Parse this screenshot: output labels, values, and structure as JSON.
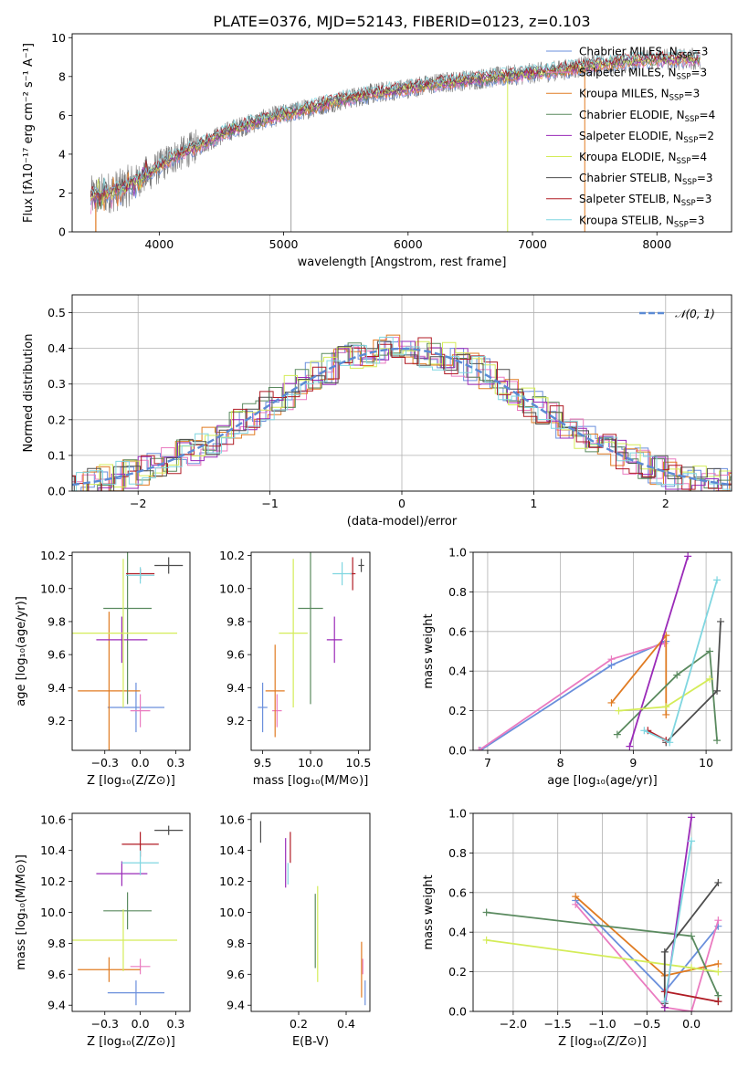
{
  "figure": {
    "title": "PLATE=0376, MJD=52143, FIBERID=0123, z=0.103"
  },
  "colors": {
    "chabrier_miles": "#6a8fdc",
    "salpeter_miles": "#ea7bc0",
    "kroupa_miles": "#e07b22",
    "chabrier_elodie": "#5a8a5f",
    "salpeter_elodie": "#9a2ab8",
    "kroupa_elodie": "#d4ec58",
    "chabrier_stelib": "#4d4d4d",
    "salpeter_stelib": "#b01b24",
    "kroupa_stelib": "#7fd6e0",
    "spectrum": "#777777"
  },
  "chart_data": [
    {
      "id": "spectrum",
      "type": "line",
      "xlabel": "wavelength [Angstrom, rest frame]",
      "ylabel": "Flux [fλ10⁻¹⁷ erg cm⁻² s⁻¹ A⁻¹]",
      "xlim": [
        3300,
        8600
      ],
      "ylim": [
        0,
        10.2
      ],
      "xticks": [
        4000,
        5000,
        6000,
        7000,
        8000
      ],
      "yticks": [
        0,
        2,
        4,
        6,
        8,
        10
      ],
      "legend": "upper right",
      "grid": false,
      "series": [
        {
          "key": "chabrier_miles",
          "name": "Chabrier MILES, N",
          "sub": "SSP",
          "suffix": "=3"
        },
        {
          "key": "salpeter_miles",
          "name": "Salpeter MILES, N",
          "sub": "SSP",
          "suffix": "=3"
        },
        {
          "key": "kroupa_miles",
          "name": "Kroupa MILES, N",
          "sub": "SSP",
          "suffix": "=3"
        },
        {
          "key": "chabrier_elodie",
          "name": "Chabrier ELODIE, N",
          "sub": "SSP",
          "suffix": "=4"
        },
        {
          "key": "salpeter_elodie",
          "name": "Salpeter ELODIE, N",
          "sub": "SSP",
          "suffix": "=2"
        },
        {
          "key": "kroupa_elodie",
          "name": "Kroupa ELODIE, N",
          "sub": "SSP",
          "suffix": "=4"
        },
        {
          "key": "chabrier_stelib",
          "name": "Chabrier STELIB, N",
          "sub": "SSP",
          "suffix": "=3"
        },
        {
          "key": "salpeter_stelib",
          "name": "Salpeter STELIB, N",
          "sub": "SSP",
          "suffix": "=3"
        },
        {
          "key": "kroupa_stelib",
          "name": "Kroupa STELIB, N",
          "sub": "SSP",
          "suffix": "=3"
        }
      ],
      "continuum_x": [
        3450,
        3700,
        3900,
        4100,
        4300,
        4600,
        4900,
        5100,
        5400,
        5700,
        6000,
        6300,
        6600,
        6900,
        7200,
        7500,
        7800,
        8100,
        8350
      ],
      "continuum_y": [
        1.8,
        2.2,
        2.9,
        3.8,
        4.4,
        5.3,
        5.9,
        6.2,
        6.7,
        7.1,
        7.4,
        7.7,
        7.9,
        8.1,
        8.3,
        8.6,
        8.8,
        8.9,
        8.9
      ]
    },
    {
      "id": "residuals",
      "type": "histogram",
      "xlabel": "(data-model)/error",
      "ylabel": "Normed distribution",
      "xlim": [
        -2.5,
        2.5
      ],
      "ylim": [
        0,
        0.55
      ],
      "xticks": [
        -2,
        -1,
        0,
        1,
        2
      ],
      "yticks": [
        0.0,
        0.1,
        0.2,
        0.3,
        0.4,
        0.5
      ],
      "legend": "upper right",
      "grid": true,
      "reference_label": "𝒩(0, 1)",
      "bins": {
        "start": -2.6,
        "width": 0.1,
        "count": 52
      }
    },
    {
      "id": "age_vs_Z",
      "type": "scatter",
      "xlabel": "Z [log₁₀(Z/Z⊙)]",
      "ylabel": "age  [log₁₀(age/yr)]",
      "xlim": [
        -0.48,
        0.35
      ],
      "ylim": [
        9.02,
        10.22
      ],
      "xticks": [
        -0.25,
        0.0,
        0.25
      ],
      "yticks": [
        9.2,
        9.4,
        9.6,
        9.8,
        10.0,
        10.2
      ],
      "grid": false,
      "points": [
        {
          "key": "chabrier_miles",
          "x": -0.03,
          "y": 9.28,
          "xerr": 0.2,
          "yerr": 0.15
        },
        {
          "key": "salpeter_miles",
          "x": 0.0,
          "y": 9.26,
          "xerr": 0.07,
          "yerr": 0.1
        },
        {
          "key": "kroupa_miles",
          "x": -0.22,
          "y": 9.38,
          "xerr": 0.22,
          "yerr": 0.48
        },
        {
          "key": "chabrier_elodie",
          "x": -0.09,
          "y": 9.88,
          "xerr": 0.17,
          "yerr": 0.58
        },
        {
          "key": "salpeter_elodie",
          "x": -0.13,
          "y": 9.69,
          "xerr": 0.18,
          "yerr": 0.14
        },
        {
          "key": "kroupa_elodie",
          "x": -0.12,
          "y": 9.73,
          "xerr": 0.38,
          "yerr": 0.45
        },
        {
          "key": "chabrier_stelib",
          "x": 0.2,
          "y": 10.14,
          "xerr": 0.1,
          "yerr": 0.05
        },
        {
          "key": "salpeter_stelib",
          "x": 0.0,
          "y": 10.09,
          "xerr": 0.1,
          "yerr": 0.03
        },
        {
          "key": "kroupa_stelib",
          "x": 0.0,
          "y": 10.08,
          "xerr": 0.1,
          "yerr": 0.05
        }
      ]
    },
    {
      "id": "age_vs_mass",
      "type": "scatter",
      "xlabel": "mass [log₁₀(M/M⊙)]",
      "ylabel": "",
      "xlim": [
        9.38,
        10.62
      ],
      "ylim": [
        9.02,
        10.22
      ],
      "xticks": [
        9.5,
        10.0,
        10.5
      ],
      "yticks": [
        9.2,
        9.4,
        9.6,
        9.8,
        10.0,
        10.2
      ],
      "grid": false,
      "points": [
        {
          "key": "chabrier_miles",
          "x": 9.5,
          "y": 9.28,
          "xerr": 0.05,
          "yerr": 0.15
        },
        {
          "key": "salpeter_miles",
          "x": 9.65,
          "y": 9.26,
          "xerr": 0.05,
          "yerr": 0.1
        },
        {
          "key": "kroupa_miles",
          "x": 9.63,
          "y": 9.38,
          "xerr": 0.1,
          "yerr": 0.28
        },
        {
          "key": "chabrier_elodie",
          "x": 10.0,
          "y": 9.88,
          "xerr": 0.13,
          "yerr": 0.58
        },
        {
          "key": "salpeter_elodie",
          "x": 10.25,
          "y": 9.69,
          "xerr": 0.08,
          "yerr": 0.14
        },
        {
          "key": "kroupa_elodie",
          "x": 9.82,
          "y": 9.73,
          "xerr": 0.15,
          "yerr": 0.45
        },
        {
          "key": "chabrier_stelib",
          "x": 10.53,
          "y": 10.14,
          "xerr": 0.03,
          "yerr": 0.04
        },
        {
          "key": "salpeter_stelib",
          "x": 10.44,
          "y": 10.09,
          "xerr": 0.03,
          "yerr": 0.1
        },
        {
          "key": "kroupa_stelib",
          "x": 10.33,
          "y": 10.09,
          "xerr": 0.1,
          "yerr": 0.07
        }
      ]
    },
    {
      "id": "weight_vs_age",
      "type": "line",
      "xlabel": "age  [log₁₀(age/yr)]",
      "ylabel": "mass weight",
      "xlim": [
        6.8,
        10.35
      ],
      "ylim": [
        0,
        1.0
      ],
      "xticks": [
        7,
        8,
        9,
        10
      ],
      "yticks": [
        0.0,
        0.2,
        0.4,
        0.6,
        0.8,
        1.0
      ],
      "grid": true,
      "series": [
        {
          "key": "chabrier_miles",
          "x": [
            6.9,
            8.7,
            9.45
          ],
          "y": [
            0.0,
            0.43,
            0.55
          ]
        },
        {
          "key": "salpeter_miles",
          "x": [
            6.88,
            8.7,
            9.43
          ],
          "y": [
            0.0,
            0.46,
            0.54
          ]
        },
        {
          "key": "kroupa_miles",
          "x": [
            8.7,
            9.45,
            9.45
          ],
          "y": [
            0.24,
            0.58,
            0.18
          ]
        },
        {
          "key": "chabrier_elodie",
          "x": [
            8.78,
            9.6,
            10.05,
            10.15
          ],
          "y": [
            0.08,
            0.38,
            0.5,
            0.05
          ]
        },
        {
          "key": "salpeter_elodie",
          "x": [
            8.95,
            9.75
          ],
          "y": [
            0.02,
            0.98
          ]
        },
        {
          "key": "kroupa_elodie",
          "x": [
            8.8,
            9.45,
            10.05
          ],
          "y": [
            0.2,
            0.22,
            0.36
          ]
        },
        {
          "key": "chabrier_stelib",
          "x": [
            9.45,
            10.15,
            10.2
          ],
          "y": [
            0.04,
            0.3,
            0.65
          ]
        },
        {
          "key": "salpeter_stelib",
          "x": [
            9.2,
            9.45
          ],
          "y": [
            0.1,
            0.05
          ]
        },
        {
          "key": "kroupa_stelib",
          "x": [
            9.15,
            9.5,
            10.15
          ],
          "y": [
            0.1,
            0.04,
            0.86
          ]
        }
      ]
    },
    {
      "id": "mass_vs_Z",
      "type": "scatter",
      "xlabel": "Z [log₁₀(Z/Z⊙)]",
      "ylabel": "mass [log₁₀(M/M⊙)]",
      "xlim": [
        -0.48,
        0.35
      ],
      "ylim": [
        9.36,
        10.64
      ],
      "xticks": [
        -0.25,
        0.0,
        0.25
      ],
      "yticks": [
        9.4,
        9.6,
        9.8,
        10.0,
        10.2,
        10.4,
        10.6
      ],
      "grid": false,
      "points": [
        {
          "key": "chabrier_miles",
          "x": -0.03,
          "y": 9.48,
          "xerr": 0.2,
          "yerr": 0.08
        },
        {
          "key": "salpeter_miles",
          "x": 0.0,
          "y": 9.65,
          "xerr": 0.07,
          "yerr": 0.05
        },
        {
          "key": "kroupa_miles",
          "x": -0.22,
          "y": 9.63,
          "xerr": 0.22,
          "yerr": 0.08
        },
        {
          "key": "chabrier_elodie",
          "x": -0.09,
          "y": 10.01,
          "xerr": 0.17,
          "yerr": 0.12
        },
        {
          "key": "salpeter_elodie",
          "x": -0.13,
          "y": 10.25,
          "xerr": 0.18,
          "yerr": 0.08
        },
        {
          "key": "kroupa_elodie",
          "x": -0.12,
          "y": 9.82,
          "xerr": 0.38,
          "yerr": 0.2
        },
        {
          "key": "chabrier_stelib",
          "x": 0.2,
          "y": 10.53,
          "xerr": 0.1,
          "yerr": 0.03
        },
        {
          "key": "salpeter_stelib",
          "x": 0.0,
          "y": 10.44,
          "xerr": 0.13,
          "yerr": 0.08
        },
        {
          "key": "kroupa_stelib",
          "x": 0.0,
          "y": 10.32,
          "xerr": 0.13,
          "yerr": 0.08
        }
      ]
    },
    {
      "id": "mass_vs_ebv",
      "type": "scatter",
      "xlabel": "E(B-V)",
      "ylabel": "",
      "xlim": [
        0.0,
        0.5
      ],
      "ylim": [
        9.36,
        10.64
      ],
      "xticks": [
        0.2,
        0.4
      ],
      "yticks": [
        9.4,
        9.6,
        9.8,
        10.0,
        10.2,
        10.4,
        10.6
      ],
      "grid": false,
      "points": [
        {
          "key": "chabrier_miles",
          "x": 0.48,
          "y": 9.48,
          "xerr": 0.0,
          "yerr": 0.08
        },
        {
          "key": "salpeter_miles",
          "x": 0.47,
          "y": 9.65,
          "xerr": 0.0,
          "yerr": 0.05
        },
        {
          "key": "kroupa_miles",
          "x": 0.465,
          "y": 9.63,
          "xerr": 0.0,
          "yerr": 0.18
        },
        {
          "key": "chabrier_elodie",
          "x": 0.27,
          "y": 9.88,
          "xerr": 0.0,
          "yerr": 0.24
        },
        {
          "key": "salpeter_elodie",
          "x": 0.145,
          "y": 10.32,
          "xerr": 0.0,
          "yerr": 0.16
        },
        {
          "key": "kroupa_elodie",
          "x": 0.28,
          "y": 9.86,
          "xerr": 0.0,
          "yerr": 0.31
        },
        {
          "key": "chabrier_stelib",
          "x": 0.04,
          "y": 10.52,
          "xerr": 0.0,
          "yerr": 0.07
        },
        {
          "key": "salpeter_stelib",
          "x": 0.165,
          "y": 10.42,
          "xerr": 0.0,
          "yerr": 0.1
        },
        {
          "key": "kroupa_stelib",
          "x": 0.155,
          "y": 10.25,
          "xerr": 0.0,
          "yerr": 0.07
        }
      ]
    },
    {
      "id": "weight_vs_Z",
      "type": "line",
      "xlabel": "Z [log₁₀(Z/Z⊙)]",
      "ylabel": "mass weight",
      "xlim": [
        -2.45,
        0.45
      ],
      "ylim": [
        0,
        1.0
      ],
      "xticks": [
        -2.0,
        -1.5,
        -1.0,
        -0.5,
        0.0
      ],
      "yticks": [
        0.0,
        0.2,
        0.4,
        0.6,
        0.8,
        1.0
      ],
      "grid": true,
      "series": [
        {
          "key": "chabrier_miles",
          "x": [
            -1.3,
            -0.3,
            0.3
          ],
          "y": [
            0.56,
            0.1,
            0.43
          ]
        },
        {
          "key": "salpeter_miles",
          "x": [
            -1.3,
            -0.3,
            0.0,
            0.3
          ],
          "y": [
            0.54,
            0.02,
            0.0,
            0.46
          ]
        },
        {
          "key": "kroupa_miles",
          "x": [
            -1.3,
            -0.3,
            0.3
          ],
          "y": [
            0.58,
            0.18,
            0.24
          ]
        },
        {
          "key": "chabrier_elodie",
          "x": [
            -2.3,
            0.0,
            0.3,
            0.3
          ],
          "y": [
            0.5,
            0.38,
            0.08,
            0.05
          ]
        },
        {
          "key": "salpeter_elodie",
          "x": [
            -0.3,
            0.0
          ],
          "y": [
            0.02,
            0.98
          ]
        },
        {
          "key": "kroupa_elodie",
          "x": [
            -2.3,
            0.0,
            0.3
          ],
          "y": [
            0.36,
            0.22,
            0.2
          ]
        },
        {
          "key": "chabrier_stelib",
          "x": [
            -0.3,
            -0.3,
            0.3
          ],
          "y": [
            0.04,
            0.3,
            0.65
          ]
        },
        {
          "key": "salpeter_stelib",
          "x": [
            -0.3,
            0.3
          ],
          "y": [
            0.1,
            0.05
          ]
        },
        {
          "key": "kroupa_stelib",
          "x": [
            -0.3,
            0.0
          ],
          "y": [
            0.05,
            0.86
          ]
        }
      ]
    }
  ]
}
